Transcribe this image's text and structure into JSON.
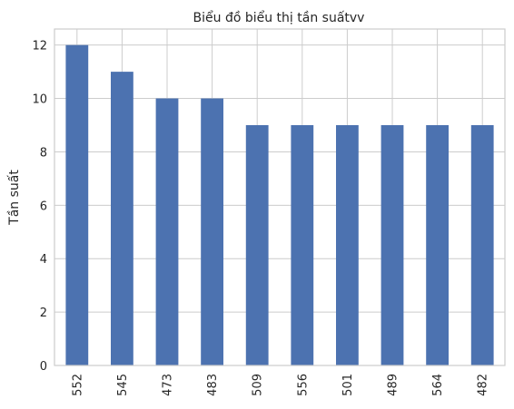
{
  "chart_data": {
    "type": "bar",
    "title": "Biểu đồ biểu thị tần suấtvv",
    "xlabel": "",
    "ylabel": "Tần suất",
    "categories": [
      "552",
      "545",
      "473",
      "483",
      "509",
      "556",
      "501",
      "489",
      "564",
      "482"
    ],
    "values": [
      12,
      11,
      10,
      10,
      9,
      9,
      9,
      9,
      9,
      9
    ],
    "ylim": [
      0,
      12.6
    ],
    "yticks": [
      0,
      2,
      4,
      6,
      8,
      10,
      12
    ],
    "grid": true,
    "bar_color": "#4c72b0",
    "grid_color": "#cccccc",
    "axis_color": "#cccccc"
  }
}
